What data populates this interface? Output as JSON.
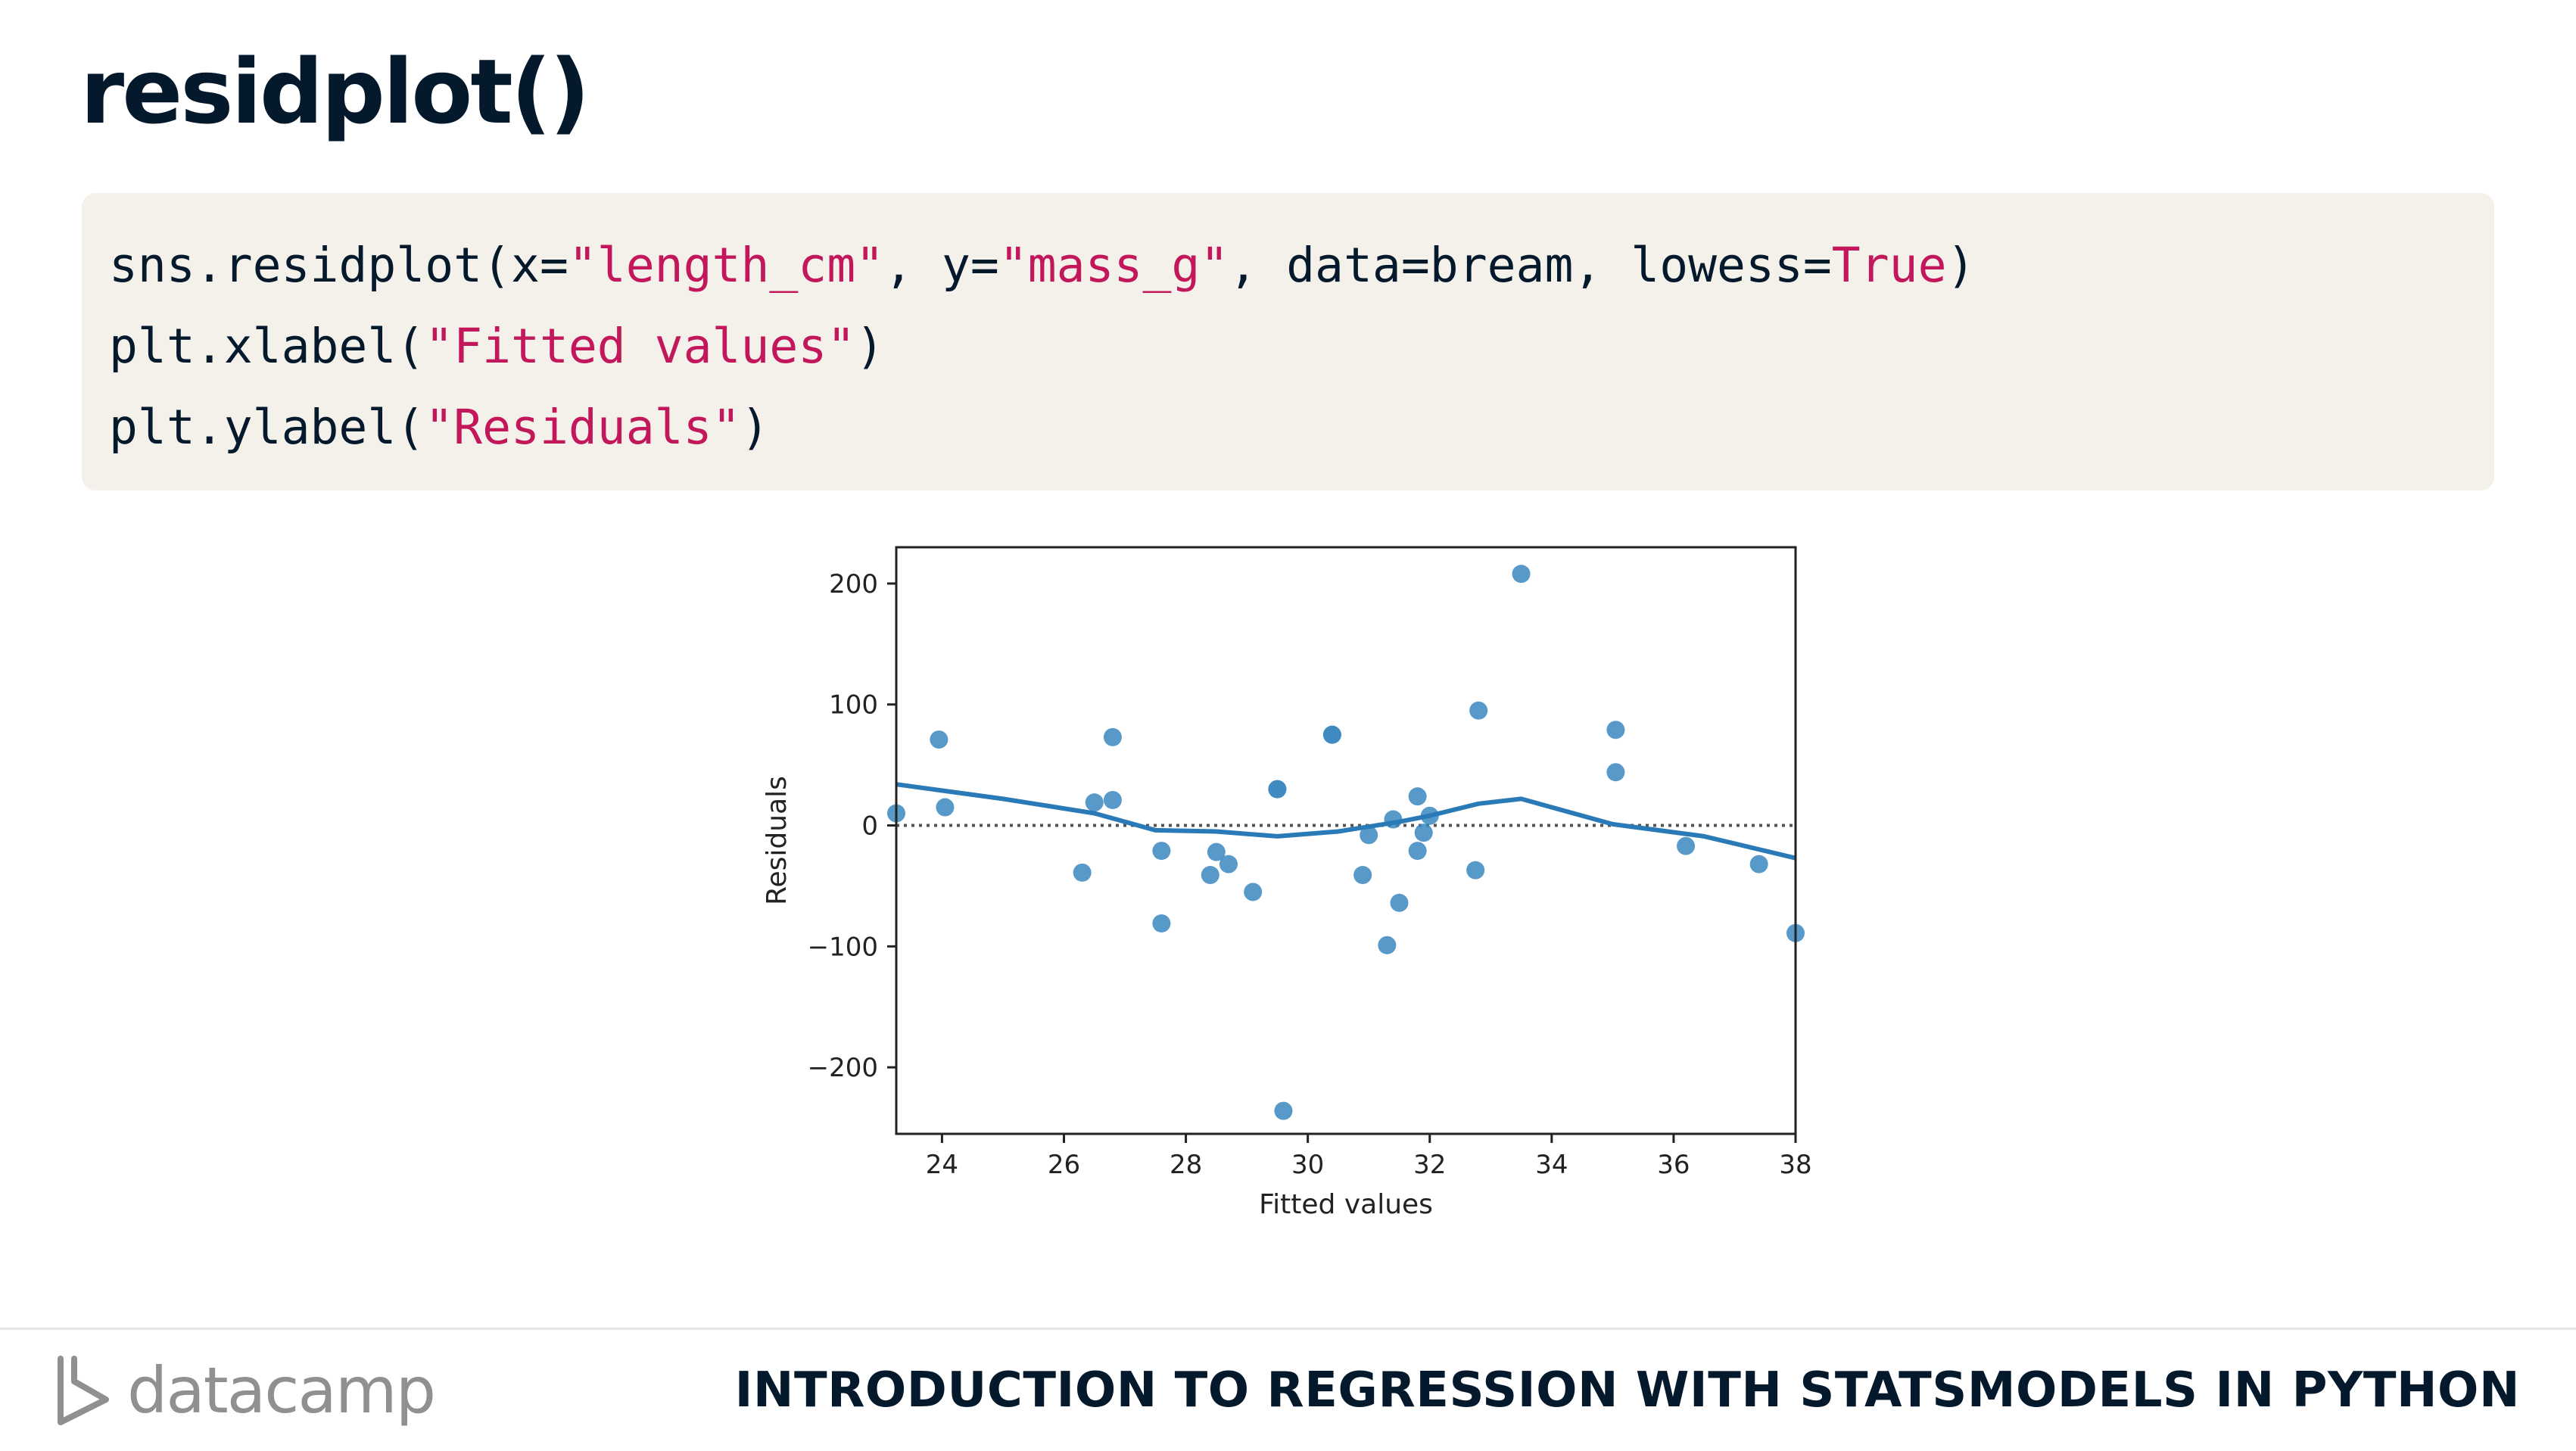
{
  "slide": {
    "title": "residplot()",
    "course_name": "INTRODUCTION TO REGRESSION WITH STATSMODELS IN PYTHON",
    "logo_text": "datacamp"
  },
  "code": {
    "lines": [
      [
        {
          "t": "sns.residplot(x=",
          "c": ""
        },
        {
          "t": "\"length_cm\"",
          "c": "str"
        },
        {
          "t": ", y=",
          "c": ""
        },
        {
          "t": "\"mass_g\"",
          "c": "str"
        },
        {
          "t": ", data=bream, lowess=",
          "c": ""
        },
        {
          "t": "True",
          "c": "kw"
        },
        {
          "t": ")",
          "c": ""
        }
      ],
      [
        {
          "t": "plt.xlabel(",
          "c": ""
        },
        {
          "t": "\"Fitted values\"",
          "c": "str"
        },
        {
          "t": ")",
          "c": ""
        }
      ],
      [
        {
          "t": "plt.ylabel(",
          "c": ""
        },
        {
          "t": "\"Residuals\"",
          "c": "str"
        },
        {
          "t": ")",
          "c": ""
        }
      ]
    ]
  },
  "colors": {
    "title": "#05192d",
    "code_bg": "#f4f1ea",
    "code_string": "#c2185b",
    "point": "#3a87c0",
    "lowess": "#2a7ab8",
    "zero_line": "#555555"
  },
  "icons": [
    "datacamp-logo-icon"
  ],
  "chart_data": {
    "type": "scatter",
    "title": "",
    "xlabel": "Fitted values",
    "ylabel": "Residuals",
    "xlim": [
      23.25,
      38.0
    ],
    "ylim": [
      -255,
      230
    ],
    "xticks": [
      24,
      26,
      28,
      30,
      32,
      34,
      36,
      38
    ],
    "yticks": [
      -200,
      -100,
      0,
      100,
      200
    ],
    "ytick_labels": [
      "−200",
      "−100",
      "0",
      "100",
      "200"
    ],
    "zero_line": true,
    "grid": false,
    "points": [
      [
        23.25,
        10
      ],
      [
        23.95,
        71
      ],
      [
        24.05,
        15
      ],
      [
        26.3,
        -39
      ],
      [
        26.5,
        19
      ],
      [
        26.8,
        73
      ],
      [
        26.8,
        21
      ],
      [
        27.6,
        -21
      ],
      [
        27.6,
        -81
      ],
      [
        28.4,
        -41
      ],
      [
        28.5,
        -22
      ],
      [
        28.7,
        -32
      ],
      [
        29.1,
        -55
      ],
      [
        29.5,
        30
      ],
      [
        29.5,
        30
      ],
      [
        29.6,
        -236
      ],
      [
        30.4,
        75
      ],
      [
        30.4,
        75
      ],
      [
        30.9,
        -41
      ],
      [
        31.0,
        -8
      ],
      [
        31.3,
        -99
      ],
      [
        31.4,
        5
      ],
      [
        31.5,
        -64
      ],
      [
        31.8,
        24
      ],
      [
        31.8,
        -21
      ],
      [
        31.9,
        -6
      ],
      [
        32.0,
        8
      ],
      [
        32.75,
        -37
      ],
      [
        32.8,
        95
      ],
      [
        33.5,
        208
      ],
      [
        35.05,
        79
      ],
      [
        35.05,
        44
      ],
      [
        36.2,
        -17
      ],
      [
        37.4,
        -32
      ],
      [
        38.0,
        -89
      ]
    ],
    "lowess": [
      [
        23.25,
        34
      ],
      [
        25.0,
        22
      ],
      [
        26.5,
        10
      ],
      [
        27.5,
        -4
      ],
      [
        28.5,
        -5
      ],
      [
        29.5,
        -9
      ],
      [
        30.5,
        -5
      ],
      [
        31.5,
        3
      ],
      [
        32.0,
        8
      ],
      [
        32.8,
        18
      ],
      [
        33.5,
        22
      ],
      [
        35.0,
        1
      ],
      [
        36.5,
        -9
      ],
      [
        38.0,
        -27
      ]
    ]
  }
}
